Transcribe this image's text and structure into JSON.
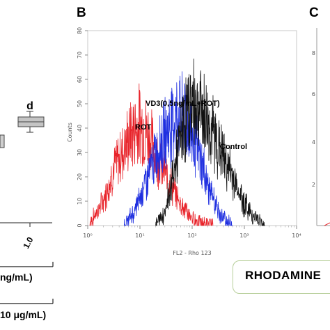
{
  "panel_a": {
    "group_label": "d",
    "x_tick": "1.0",
    "label_1": "ng/mL)",
    "label_2": "10 μg/mL)"
  },
  "panel_b": {
    "letter": "B"
  },
  "panel_c": {
    "letter": "C"
  },
  "rhodamine_label": "RHODAMINE",
  "colors": {
    "red": "#e8232a",
    "blue": "#1f2fe0",
    "black": "#111111",
    "box_border": "#b7cf9a"
  },
  "chart_data": {
    "type": "line",
    "title": "",
    "xlabel": "FL2 - Rho 123",
    "ylabel": "Counts",
    "x_scale": "log",
    "xlim": [
      1,
      10000
    ],
    "ylim": [
      0,
      80
    ],
    "x_ticks": [
      "10⁰",
      "10¹",
      "10²",
      "10³",
      "10⁴"
    ],
    "y_ticks": [
      "0",
      "10",
      "20",
      "30",
      "40",
      "50",
      "60",
      "70",
      "80"
    ],
    "annotations": [
      "VD3(0,5ng/mL+ROT)",
      "ROT",
      "Control"
    ],
    "series": [
      {
        "name": "ROT",
        "color": "#e8232a",
        "x": [
          1.1,
          2,
          3,
          5,
          7,
          10,
          14,
          20,
          30,
          45,
          70,
          100,
          150,
          250
        ],
        "y": [
          1,
          10,
          22,
          32,
          38,
          42,
          38,
          30,
          22,
          14,
          7,
          3,
          1,
          0
        ]
      },
      {
        "name": "VD3(0,5ng/mL+ROT)",
        "color": "#1f2fe0",
        "x": [
          5,
          8,
          12,
          18,
          25,
          35,
          50,
          70,
          100,
          150,
          220,
          350,
          600
        ],
        "y": [
          0,
          6,
          16,
          26,
          34,
          40,
          45,
          44,
          38,
          26,
          14,
          4,
          0
        ]
      },
      {
        "name": "Control",
        "color": "#111111",
        "x": [
          20,
          30,
          45,
          60,
          80,
          110,
          160,
          250,
          400,
          650,
          1000,
          1600,
          2500
        ],
        "y": [
          0,
          6,
          22,
          36,
          46,
          50,
          46,
          38,
          28,
          18,
          9,
          3,
          0
        ]
      }
    ]
  }
}
